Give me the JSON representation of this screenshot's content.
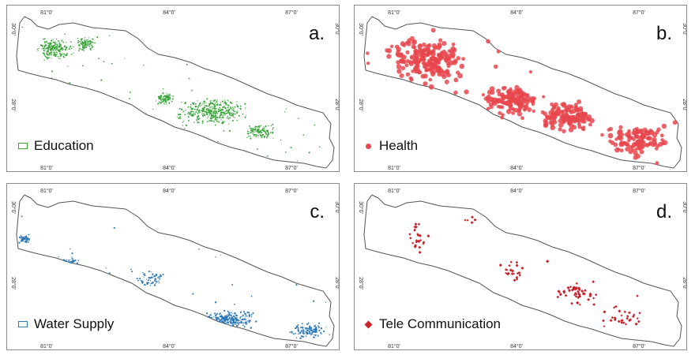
{
  "ticks": {
    "longitude": [
      "81°0'",
      "84°0'",
      "87°0'"
    ],
    "latitude": [
      "30°0'",
      "28°0'"
    ]
  },
  "panels": [
    {
      "letter": "a.",
      "legend": "Education",
      "color": "#3aa63a",
      "marker": "square-outline",
      "density": 900,
      "pattern": "education"
    },
    {
      "letter": "b.",
      "legend": "Health",
      "color": "#e8474d",
      "marker": "circle",
      "density": 600,
      "pattern": "health"
    },
    {
      "letter": "c.",
      "legend": "Water Supply",
      "color": "#2e7ab8",
      "marker": "square-outline",
      "density": 500,
      "pattern": "water"
    },
    {
      "letter": "d.",
      "legend": "Tele Communication",
      "color": "#c7222a",
      "marker": "diamond",
      "density": 130,
      "pattern": "tele"
    }
  ]
}
